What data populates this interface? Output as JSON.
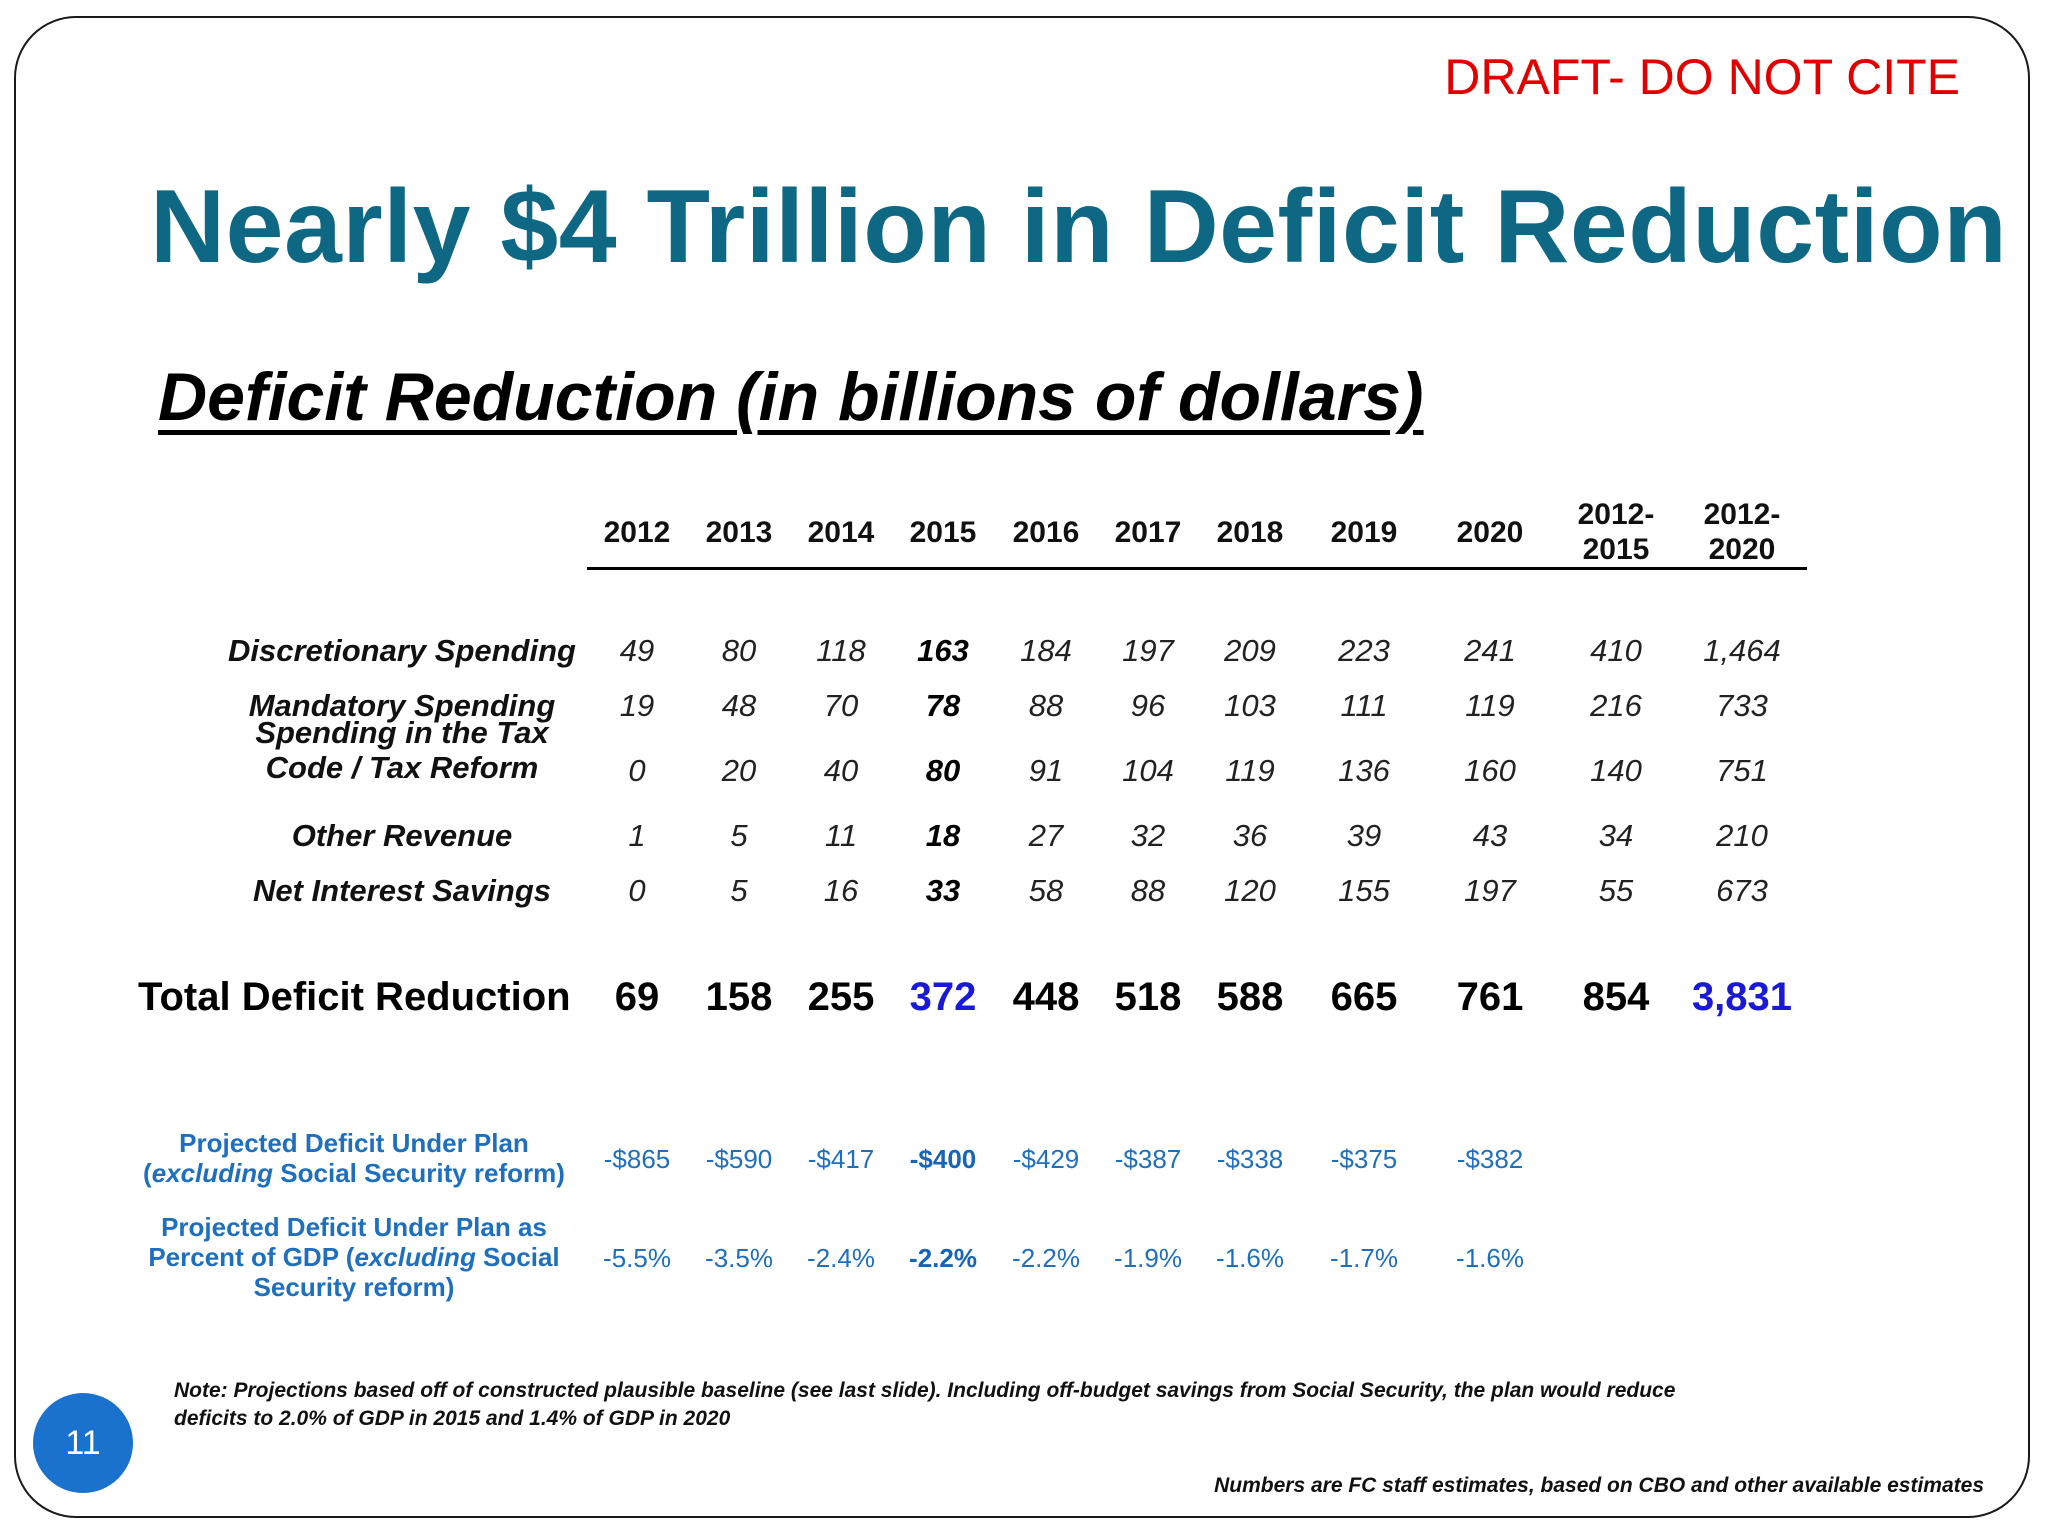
{
  "draft_notice": "DRAFT- DO NOT CITE",
  "title": "Nearly $4 Trillion in Deficit Reduction",
  "subtitle": "Deficit Reduction (in billions of dollars)",
  "table": {
    "columns": [
      "2012",
      "2013",
      "2014",
      "2015",
      "2016",
      "2017",
      "2018",
      "2019",
      "2020",
      "2012-2015",
      "2012-2020"
    ],
    "column_lines": [
      [
        "2012"
      ],
      [
        "2013"
      ],
      [
        "2014"
      ],
      [
        "2015"
      ],
      [
        "2016"
      ],
      [
        "2017"
      ],
      [
        "2018"
      ],
      [
        "2019"
      ],
      [
        "2020"
      ],
      [
        "2012-",
        "2015"
      ],
      [
        "2012-",
        "2020"
      ]
    ],
    "rows": [
      {
        "label": "Discretionary Spending",
        "values": [
          "49",
          "80",
          "118",
          "163",
          "184",
          "197",
          "209",
          "223",
          "241",
          "410",
          "1,464"
        ]
      },
      {
        "label": "Mandatory Spending",
        "values": [
          "19",
          "48",
          "70",
          "78",
          "88",
          "96",
          "103",
          "111",
          "119",
          "216",
          "733"
        ]
      },
      {
        "label": "Spending in the Tax Code / Tax Reform",
        "label_lines": [
          "Spending in the Tax",
          "Code / Tax Reform"
        ],
        "values": [
          "0",
          "20",
          "40",
          "80",
          "91",
          "104",
          "119",
          "136",
          "160",
          "140",
          "751"
        ]
      },
      {
        "label": "Other Revenue",
        "values": [
          "1",
          "5",
          "11",
          "18",
          "27",
          "32",
          "36",
          "39",
          "43",
          "34",
          "210"
        ]
      },
      {
        "label": "Net Interest Savings",
        "values": [
          "0",
          "5",
          "16",
          "33",
          "58",
          "88",
          "120",
          "155",
          "197",
          "55",
          "673"
        ]
      }
    ],
    "total": {
      "label": "Total Deficit Reduction",
      "values": [
        "69",
        "158",
        "255",
        "372",
        "448",
        "518",
        "588",
        "665",
        "761",
        "854",
        "3,831"
      ],
      "highlight_color": "#1a1ad6"
    },
    "projected_deficit": {
      "label_lines": [
        "Projected Deficit Under Plan",
        "(",
        "excluding",
        " Social Security reform)"
      ],
      "values": [
        "-$865",
        "-$590",
        "-$417",
        "-$400",
        "-$429",
        "-$387",
        "-$338",
        "-$375",
        "-$382"
      ]
    },
    "projected_gdp": {
      "label_lines": [
        "Projected Deficit Under Plan as",
        "Percent of GDP (",
        "excluding",
        " Social",
        "Security reform)"
      ],
      "values": [
        "-5.5%",
        "-3.5%",
        "-2.4%",
        "-2.2%",
        "-2.2%",
        "-1.9%",
        "-1.6%",
        "-1.7%",
        "-1.6%"
      ]
    }
  },
  "note": "Note: Projections based off of constructed plausible baseline (see last slide). Including off-budget savings from Social Security, the plan would reduce deficits to 2.0% of GDP in 2015 and 1.4% of GDP in 2020",
  "source": "Numbers are FC staff estimates, based on CBO and other available estimates",
  "page_number": "11",
  "colors": {
    "title": "#0e6783",
    "draft": "#e00000",
    "blue_text": "#1f6fbf",
    "badge": "#1b72cd"
  }
}
